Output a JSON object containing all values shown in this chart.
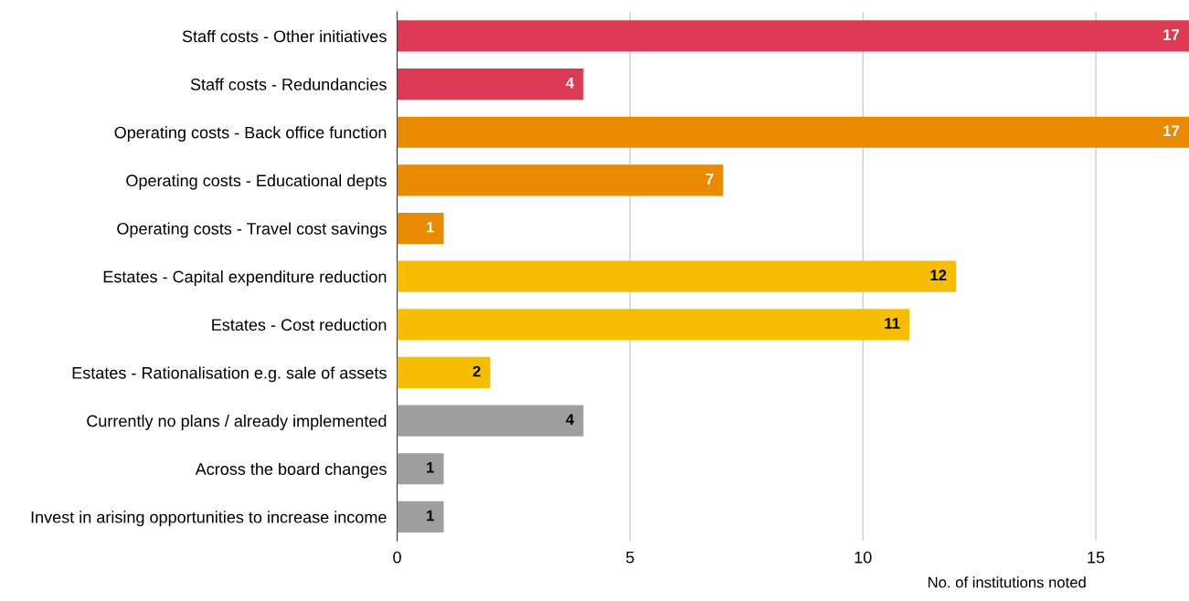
{
  "chart_data": {
    "type": "bar",
    "orientation": "horizontal",
    "categories": [
      "Staff costs - Other initiatives",
      "Staff costs - Redundancies",
      "Operating costs - Back office function",
      "Operating costs - Educational depts",
      "Operating costs - Travel cost savings",
      "Estates - Capital expenditure reduction",
      "Estates - Cost reduction",
      "Estates - Rationalisation e.g. sale of assets",
      "Currently no plans / already implemented",
      "Across the board changes",
      "Invest in arising opportunities to increase income"
    ],
    "values": [
      17,
      4,
      17,
      7,
      1,
      12,
      11,
      2,
      4,
      1,
      1
    ],
    "colors": [
      "#dc3a55",
      "#dc3a55",
      "#e98b00",
      "#e98b00",
      "#e98b00",
      "#f7bd00",
      "#f7bd00",
      "#f7bd00",
      "#9e9e9e",
      "#9e9e9e",
      "#9e9e9e"
    ],
    "xlim": [
      0,
      17
    ],
    "xticks": [
      0,
      5,
      10,
      15
    ],
    "xlabel": "No. of institutions noted",
    "grid": "x",
    "data_labels": true
  }
}
